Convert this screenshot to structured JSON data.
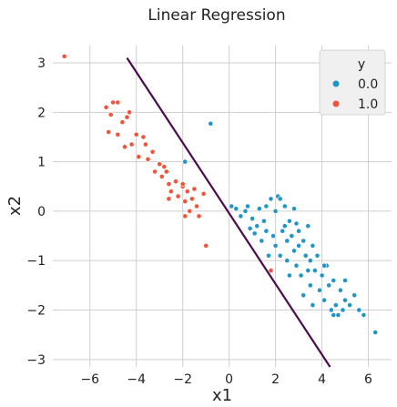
{
  "chart_data": {
    "type": "scatter",
    "title": "Linear Regression",
    "xlabel": "x1",
    "ylabel": "x2",
    "xlim": [
      -7.6,
      7.0
    ],
    "ylim": [
      -3.15,
      3.35
    ],
    "xticks": [
      -6,
      -4,
      -2,
      0,
      2,
      4,
      6
    ],
    "yticks": [
      -3,
      -2,
      -1,
      0,
      1,
      2,
      3
    ],
    "grid": true,
    "legend": {
      "title": "y",
      "placement": "top-right",
      "entries": [
        {
          "label": "0.0",
          "color": "#1f96c6"
        },
        {
          "label": "1.0",
          "color": "#f0553a"
        }
      ]
    },
    "series": [
      {
        "name": "0.0",
        "color": "#1f96c6",
        "points": [
          [
            -0.8,
            1.77
          ],
          [
            -1.9,
            1.0
          ],
          [
            0.1,
            0.1
          ],
          [
            0.3,
            0.05
          ],
          [
            0.5,
            -0.1
          ],
          [
            0.7,
            0.0
          ],
          [
            0.8,
            0.1
          ],
          [
            1.0,
            -0.15
          ],
          [
            1.2,
            -0.3
          ],
          [
            1.3,
            0.05
          ],
          [
            1.1,
            -0.45
          ],
          [
            1.5,
            -0.2
          ],
          [
            1.6,
            0.1
          ],
          [
            1.8,
            0.25
          ],
          [
            1.9,
            -0.5
          ],
          [
            2.0,
            0.0
          ],
          [
            2.0,
            -0.7
          ],
          [
            2.1,
            0.3
          ],
          [
            2.2,
            -0.9
          ],
          [
            2.3,
            -0.4
          ],
          [
            2.4,
            0.1
          ],
          [
            2.5,
            -0.6
          ],
          [
            2.5,
            -1.0
          ],
          [
            2.6,
            -0.2
          ],
          [
            2.7,
            -0.5
          ],
          [
            2.8,
            -0.8
          ],
          [
            2.8,
            0.05
          ],
          [
            2.9,
            -1.1
          ],
          [
            3.0,
            -0.4
          ],
          [
            3.0,
            -0.7
          ],
          [
            3.1,
            -1.3
          ],
          [
            3.2,
            -0.6
          ],
          [
            3.3,
            -0.9
          ],
          [
            3.4,
            -0.3
          ],
          [
            3.5,
            -1.0
          ],
          [
            3.5,
            -1.5
          ],
          [
            3.6,
            -0.7
          ],
          [
            3.7,
            -1.2
          ],
          [
            3.8,
            -0.9
          ],
          [
            3.9,
            -1.6
          ],
          [
            4.0,
            -1.3
          ],
          [
            4.1,
            -1.8
          ],
          [
            4.2,
            -1.1
          ],
          [
            4.3,
            -1.5
          ],
          [
            4.4,
            -2.0
          ],
          [
            4.5,
            -1.4
          ],
          [
            4.6,
            -1.9
          ],
          [
            4.7,
            -2.1
          ],
          [
            4.8,
            -1.6
          ],
          [
            4.9,
            -2.0
          ],
          [
            5.0,
            -1.8
          ],
          [
            5.2,
            -1.9
          ],
          [
            5.4,
            -1.7
          ],
          [
            5.6,
            -2.0
          ],
          [
            5.8,
            -2.1
          ],
          [
            6.3,
            -2.45
          ],
          [
            1.7,
            -0.9
          ],
          [
            2.6,
            -1.3
          ],
          [
            3.2,
            -1.7
          ],
          [
            1.4,
            -0.6
          ],
          [
            2.2,
            0.25
          ],
          [
            0.9,
            -0.35
          ],
          [
            1.6,
            -0.4
          ],
          [
            2.4,
            -0.3
          ],
          [
            3.6,
            -1.9
          ],
          [
            4.5,
            -2.1
          ],
          [
            5.0,
            -1.4
          ],
          [
            4.1,
            -1.1
          ],
          [
            3.4,
            -1.2
          ],
          [
            2.9,
            -0.25
          ]
        ]
      },
      {
        "name": "1.0",
        "color": "#f0553a",
        "points": [
          [
            -7.1,
            3.13
          ],
          [
            -5.3,
            2.1
          ],
          [
            -5.0,
            2.2
          ],
          [
            -4.8,
            2.2
          ],
          [
            -5.1,
            1.95
          ],
          [
            -4.6,
            1.8
          ],
          [
            -5.2,
            1.6
          ],
          [
            -4.8,
            1.55
          ],
          [
            -4.4,
            1.9
          ],
          [
            -4.0,
            1.55
          ],
          [
            -4.2,
            1.35
          ],
          [
            -3.9,
            1.1
          ],
          [
            -3.6,
            1.35
          ],
          [
            -3.5,
            1.05
          ],
          [
            -3.3,
            1.2
          ],
          [
            -3.0,
            0.95
          ],
          [
            -2.9,
            0.7
          ],
          [
            -2.7,
            0.8
          ],
          [
            -2.6,
            0.55
          ],
          [
            -2.5,
            0.4
          ],
          [
            -2.3,
            0.6
          ],
          [
            -2.2,
            0.3
          ],
          [
            -2.0,
            0.5
          ],
          [
            -1.9,
            0.2
          ],
          [
            -1.8,
            0.4
          ],
          [
            -1.7,
            0.0
          ],
          [
            -1.5,
            0.45
          ],
          [
            -1.4,
            0.1
          ],
          [
            -1.3,
            -0.1
          ],
          [
            -1.9,
            -0.1
          ],
          [
            -2.6,
            0.25
          ],
          [
            -1.0,
            -0.7
          ],
          [
            -1.1,
            0.35
          ],
          [
            -1.6,
            0.25
          ],
          [
            -3.2,
            0.8
          ],
          [
            -4.5,
            1.3
          ],
          [
            -4.3,
            2.0
          ],
          [
            1.8,
            -1.2
          ],
          [
            -2.8,
            0.9
          ],
          [
            -2.0,
            0.55
          ],
          [
            -3.7,
            1.5
          ]
        ]
      }
    ],
    "regression_line": {
      "color": "#4b0c4e",
      "x": [
        -4.4,
        4.35
      ],
      "y": [
        3.1,
        -3.15
      ]
    }
  }
}
